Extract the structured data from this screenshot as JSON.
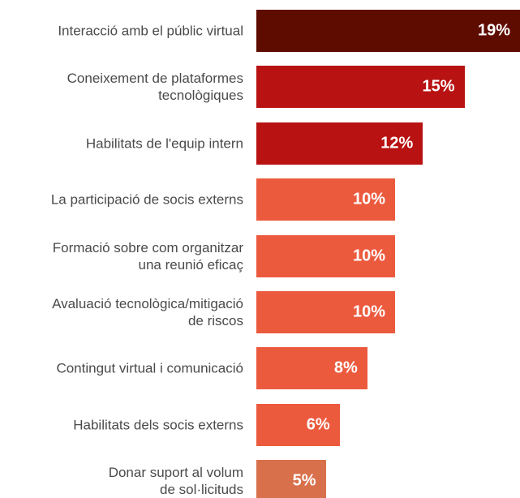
{
  "chart_data": {
    "type": "bar",
    "orientation": "horizontal",
    "categories": [
      "Interacció amb el públic virtual",
      "Coneixement de plataformes\ntecnològiques",
      "Habilitats de l'equip intern",
      "La participació de socis externs",
      "Formació sobre com organitzar\nuna reunió eficaç",
      "Avaluació tecnològica/mitigació\nde riscos",
      "Contingut virtual i comunicació",
      "Habilitats dels socis externs",
      "Donar suport al volum\nde sol·licituds"
    ],
    "values": [
      19,
      15,
      12,
      10,
      10,
      10,
      8,
      6,
      5
    ],
    "value_labels": [
      "19%",
      "15%",
      "12%",
      "10%",
      "10%",
      "10%",
      "8%",
      "6%",
      "5%"
    ],
    "colors": [
      "#5f0c00",
      "#b91212",
      "#b91212",
      "#ec5a3e",
      "#ec5a3e",
      "#ec5a3e",
      "#ec5a3e",
      "#ec5a3e",
      "#d8704b"
    ]
  }
}
